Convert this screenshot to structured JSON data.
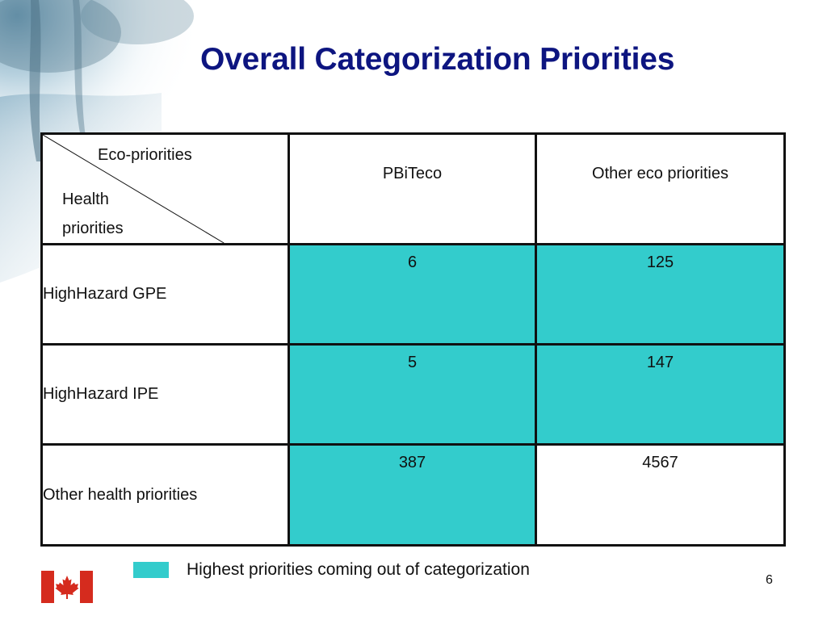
{
  "slide": {
    "title": "Overall Categorization Priorities",
    "page_number": "6"
  },
  "table": {
    "corner_column_label": "Eco-priorities",
    "corner_row_label_line1": "Health",
    "corner_row_label_line2": "priorities",
    "column_headers": [
      "PBiTeco",
      "Other eco priorities"
    ],
    "rows": [
      {
        "label": "HighHazard GPE",
        "values": [
          "6",
          "125"
        ]
      },
      {
        "label": "HighHazard IPE",
        "values": [
          "5",
          "147"
        ]
      },
      {
        "label": "Other health priorities",
        "values": [
          "387",
          "4567"
        ]
      }
    ],
    "highlight_color": "#33cccc"
  },
  "legend": {
    "text": "Highest priorities coming out of categorization",
    "swatch_color": "#33cccc"
  },
  "colors": {
    "title": "#0d1580",
    "flag_red": "#d52b1e"
  },
  "icons": {
    "flag": "canada-flag-icon"
  }
}
